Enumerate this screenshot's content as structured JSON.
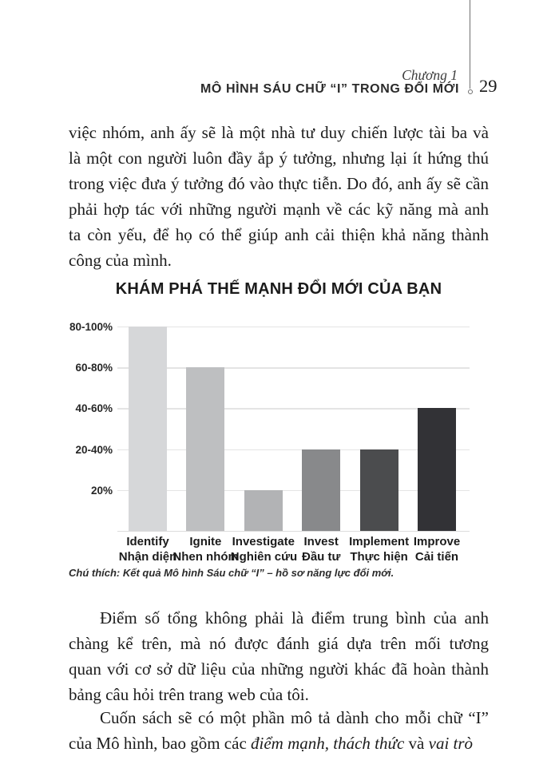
{
  "header": {
    "chapter": "Chương 1",
    "title": "MÔ HÌNH SÁU CHỮ “I” TRONG ĐỔI MỚI",
    "page_number": "29"
  },
  "paragraph1": {
    "lines": [
      "việc nhóm, anh ấy sẽ là một nhà tư duy chiến lược tài ba và",
      "là một con người luôn đầy ắp ý tưởng, nhưng lại ít hứng thú",
      "trong việc đưa ý tưởng đó vào thực tiễn. Do đó, anh ấy sẽ cần",
      "phải hợp tác với những người mạnh về các kỹ năng mà anh",
      "ta còn yếu, để họ có thể giúp anh cải thiện khả năng thành",
      "công của mình."
    ]
  },
  "chart_data": {
    "type": "bar",
    "title": "KHÁM PHÁ THẾ MẠNH ĐỔI MỚI CỦA BẠN",
    "caption": "Chú thích: Kết quả Mô hình Sáu chữ “I” – hồ sơ năng lực đổi mới.",
    "y_ticks": [
      "80-100%",
      "60-80%",
      "40-60%",
      "20-40%",
      "20%"
    ],
    "ylim": [
      0,
      100
    ],
    "grid": true,
    "legend": false,
    "categories": [
      {
        "en": "Identify",
        "vi": "Nhận diện"
      },
      {
        "en": "Ignite",
        "vi": "Nhen nhóm"
      },
      {
        "en": "Investigate",
        "vi": "Nghiên cứu"
      },
      {
        "en": "Invest",
        "vi": "Đầu tư"
      },
      {
        "en": "Implement",
        "vi": "Thực hiện"
      },
      {
        "en": "Improve",
        "vi": "Cải tiến"
      }
    ],
    "values": [
      100,
      80,
      20,
      40,
      40,
      60
    ],
    "bands": [
      "80-100%",
      "60-80%",
      "20%",
      "20-40%",
      "20-40%",
      "40-60%"
    ],
    "bar_colors": [
      "#d6d7d9",
      "#bebfc1",
      "#b2b3b5",
      "#88898b",
      "#4b4c4e",
      "#323236"
    ],
    "gridline_color": "#e4e4e4"
  },
  "paragraph2": {
    "lines": [
      "Điểm số tổng không phải là điểm trung bình của anh",
      "chàng kể trên, mà nó được đánh giá dựa trên mối tương",
      "quan với cơ sở dữ liệu của những người khác đã hoàn thành",
      "bảng câu hỏi trên trang web của tôi."
    ]
  },
  "paragraph3": {
    "line1": "Cuốn sách sẽ có một phần mô tả dành cho mỗi chữ “I”",
    "line2_segments": [
      {
        "text": "của Mô hình, bao gồm các ",
        "italic": false
      },
      {
        "text": "điểm mạnh, thách thức",
        "italic": true
      },
      {
        "text": " và ",
        "italic": false
      },
      {
        "text": "vai trò",
        "italic": true
      }
    ]
  }
}
